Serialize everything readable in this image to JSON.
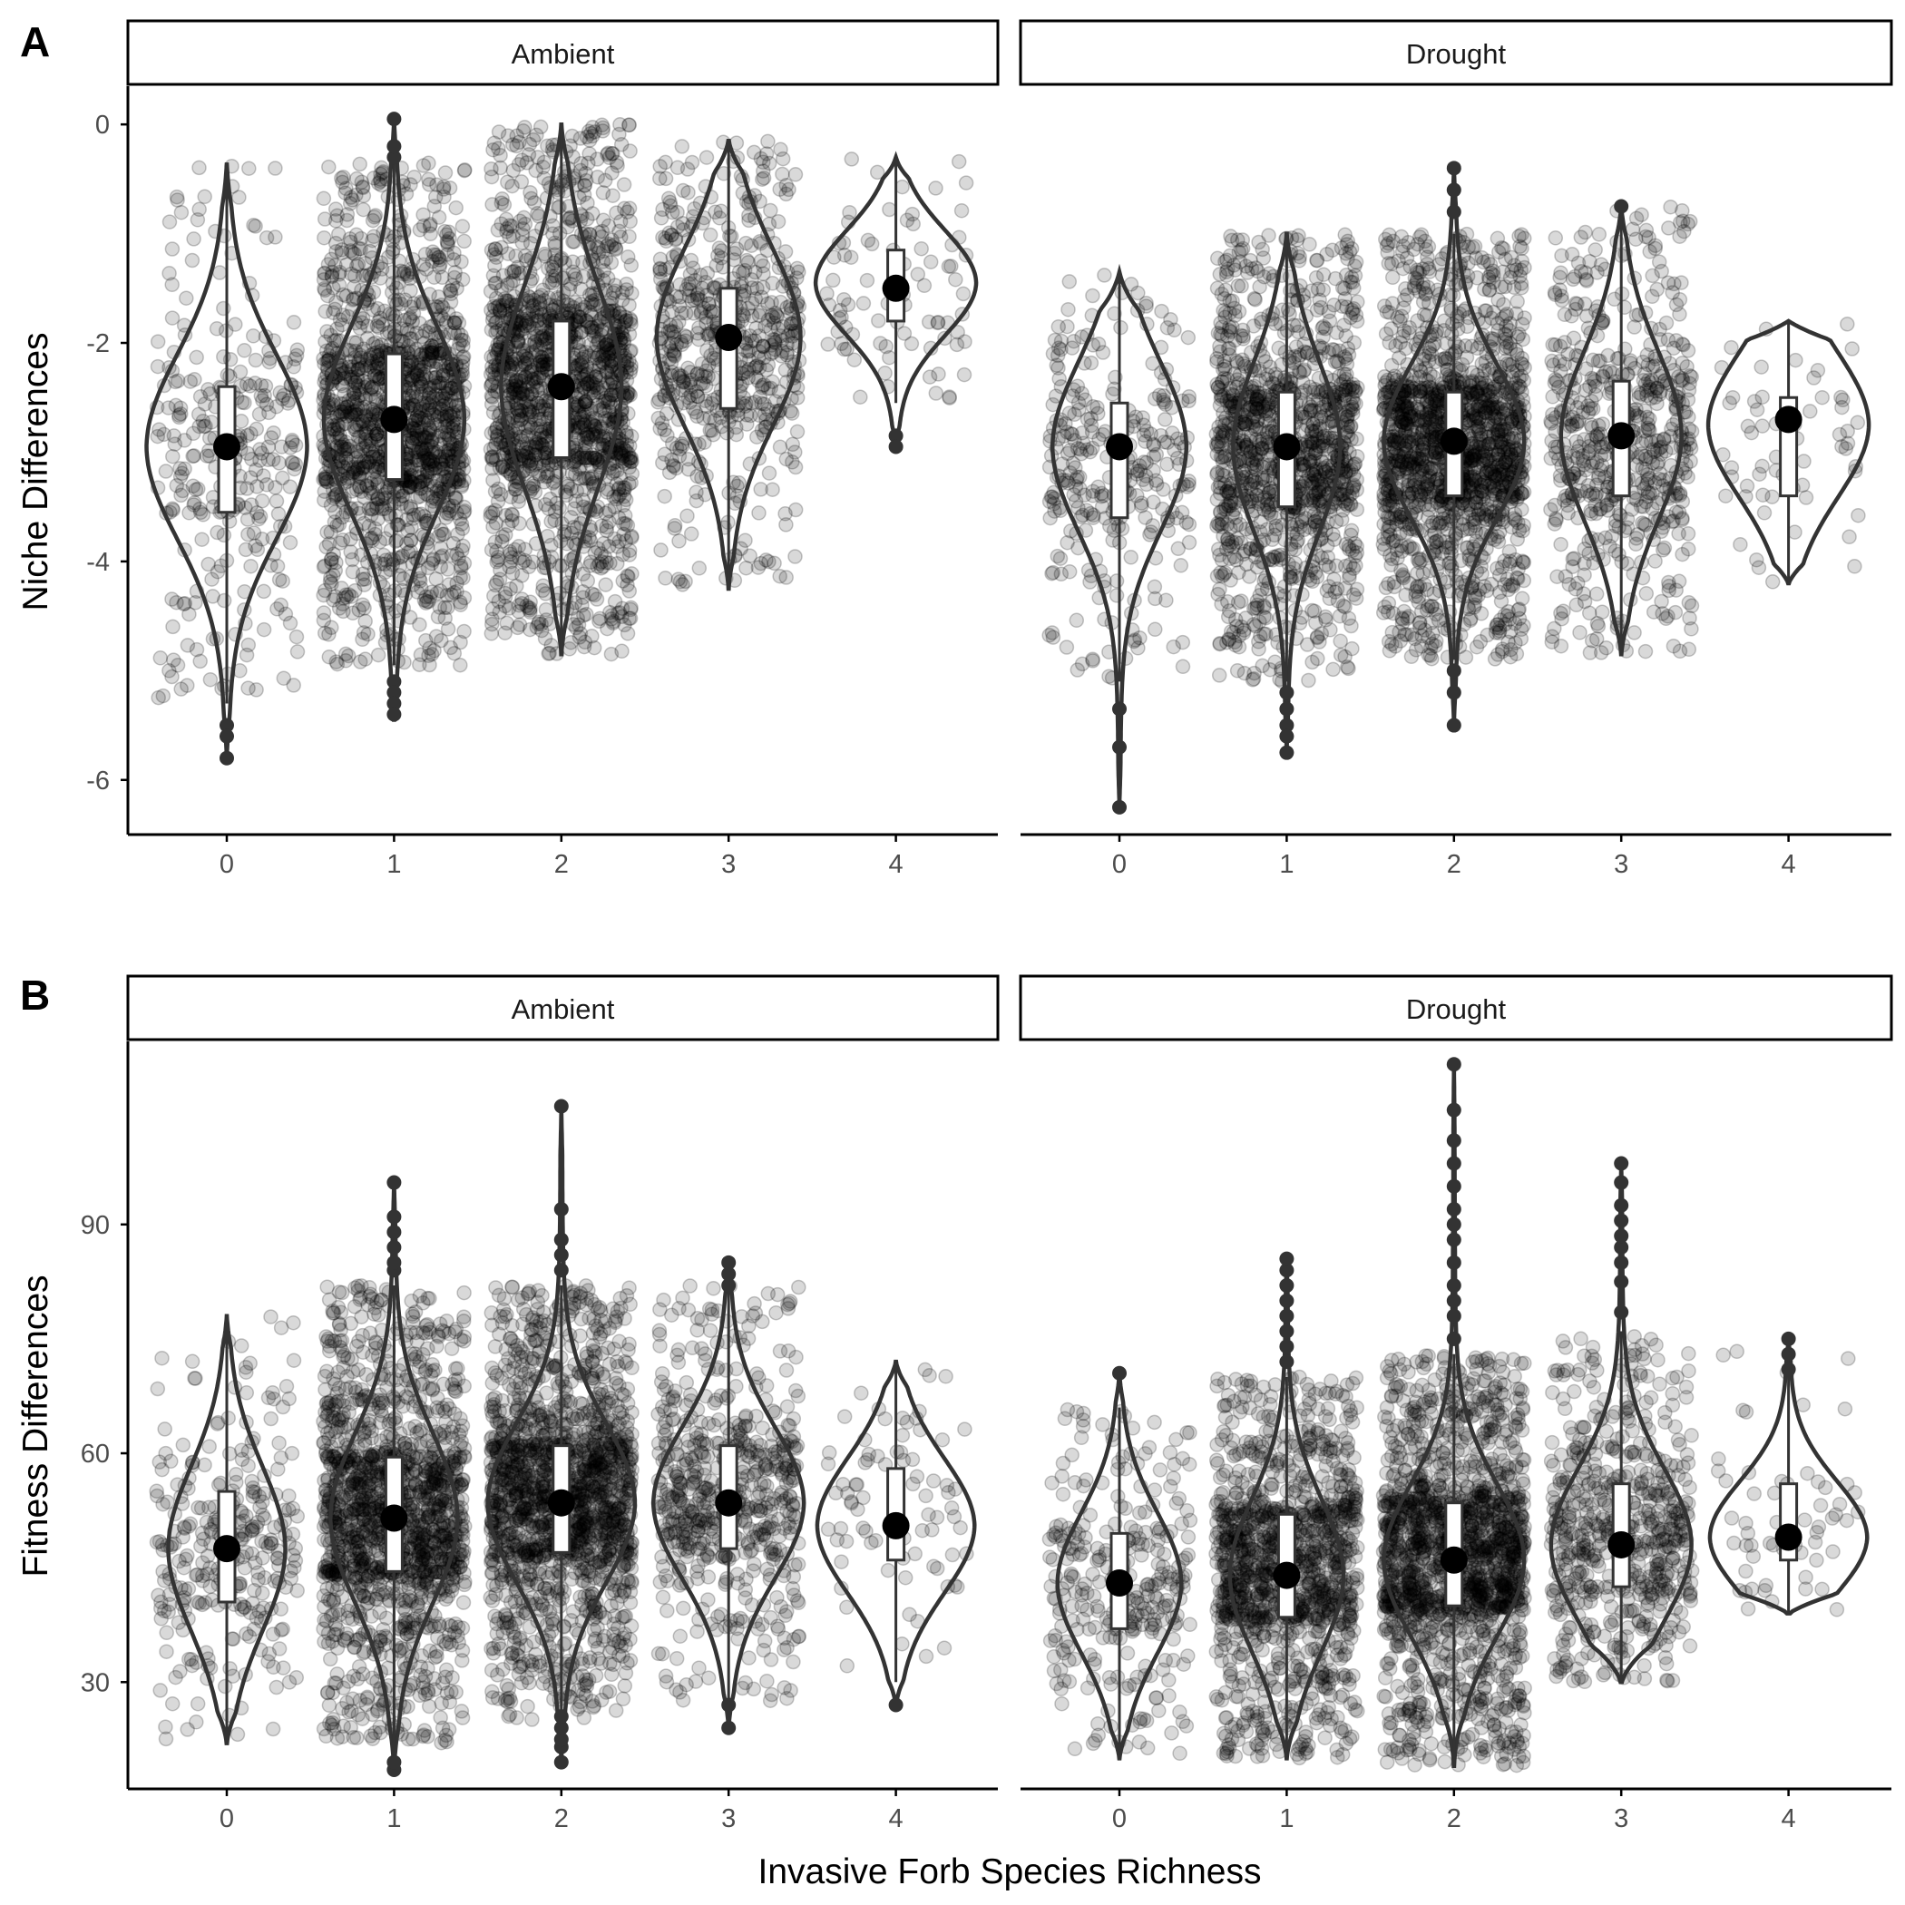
{
  "panel_labels": [
    "A",
    "B"
  ],
  "facet_labels": [
    "Ambient",
    "Drought"
  ],
  "x_axis_title": "Invasive Forb Species Richness",
  "colors": {
    "points": "#000000",
    "violin_stroke": "#333333",
    "violin_fill": "#ffffff",
    "box_stroke": "#333333",
    "box_fill": "#ffffff",
    "mean_point": "#000000",
    "strip_border": "#000000",
    "axis": "#000000"
  },
  "chart_data": [
    {
      "type": "violin",
      "panel": "A",
      "ylabel": "Niche Differences",
      "xlabel": "Invasive Forb Species Richness",
      "categories": [
        "0",
        "1",
        "2",
        "3",
        "4"
      ],
      "ylim": [
        -6.5,
        0.35
      ],
      "yticks": [
        0,
        -2,
        -4,
        -6
      ],
      "ytick_labels": [
        "0",
        "-2",
        "-4",
        "-6"
      ],
      "facets": [
        {
          "name": "Ambient",
          "groups": [
            {
              "x": "0",
              "n": 300,
              "q1": -3.55,
              "median": -2.95,
              "q3": -2.4,
              "whisker_lo": -5.3,
              "whisker_hi": -0.35,
              "mean": -2.95,
              "min": -5.8,
              "max": -0.35,
              "outliers": [
                -5.5,
                -5.6,
                -5.8
              ],
              "violin_max_halfwidth": 0.48
            },
            {
              "x": "1",
              "n": 1500,
              "q1": -3.25,
              "median": -2.7,
              "q3": -2.1,
              "whisker_lo": -4.95,
              "whisker_hi": -0.35,
              "mean": -2.7,
              "min": -5.45,
              "max": 0.05,
              "outliers": [
                -5.1,
                -5.2,
                -5.3,
                -5.4,
                -0.3,
                -0.2,
                0.05
              ],
              "violin_max_halfwidth": 0.42
            },
            {
              "x": "2",
              "n": 2000,
              "q1": -3.05,
              "median": -2.4,
              "q3": -1.8,
              "whisker_lo": -4.85,
              "whisker_hi": 0.0,
              "mean": -2.4,
              "min": -4.85,
              "max": 0.0,
              "outliers": [],
              "violin_max_halfwidth": 0.36
            },
            {
              "x": "3",
              "n": 600,
              "q1": -2.6,
              "median": -1.95,
              "q3": -1.5,
              "whisker_lo": -4.25,
              "whisker_hi": -0.15,
              "mean": -1.95,
              "min": -4.25,
              "max": -0.15,
              "outliers": [],
              "violin_max_halfwidth": 0.43
            },
            {
              "x": "4",
              "n": 80,
              "q1": -1.8,
              "median": -1.45,
              "q3": -1.15,
              "whisker_lo": -2.55,
              "whisker_hi": -0.3,
              "mean": -1.5,
              "min": -2.95,
              "max": -0.3,
              "outliers": [
                -2.85,
                -2.95
              ],
              "violin_max_halfwidth": 0.48
            }
          ]
        },
        {
          "name": "Drought",
          "groups": [
            {
              "x": "0",
              "n": 300,
              "q1": -3.6,
              "median": -2.95,
              "q3": -2.55,
              "whisker_lo": -5.1,
              "whisker_hi": -1.35,
              "mean": -2.95,
              "min": -6.25,
              "max": -1.35,
              "outliers": [
                -5.35,
                -5.7,
                -6.25
              ],
              "violin_max_halfwidth": 0.4
            },
            {
              "x": "1",
              "n": 1200,
              "q1": -3.5,
              "median": -2.95,
              "q3": -2.45,
              "whisker_lo": -5.1,
              "whisker_hi": -1.0,
              "mean": -2.95,
              "min": -5.75,
              "max": -1.0,
              "outliers": [
                -5.2,
                -5.35,
                -5.5,
                -5.6,
                -5.75
              ],
              "violin_max_halfwidth": 0.32
            },
            {
              "x": "2",
              "n": 1800,
              "q1": -3.4,
              "median": -2.9,
              "q3": -2.45,
              "whisker_lo": -4.9,
              "whisker_hi": -1.0,
              "mean": -2.9,
              "min": -5.5,
              "max": -0.4,
              "outliers": [
                -5.0,
                -5.2,
                -5.5,
                -0.4,
                -0.6,
                -0.8
              ],
              "violin_max_halfwidth": 0.42
            },
            {
              "x": "3",
              "n": 600,
              "q1": -3.4,
              "median": -2.85,
              "q3": -2.35,
              "whisker_lo": -4.85,
              "whisker_hi": -0.75,
              "mean": -2.85,
              "min": -4.85,
              "max": -0.75,
              "outliers": [
                -0.75
              ],
              "violin_max_halfwidth": 0.36
            },
            {
              "x": "4",
              "n": 60,
              "q1": -3.4,
              "median": -2.75,
              "q3": -2.5,
              "whisker_lo": -4.2,
              "whisker_hi": -1.8,
              "mean": -2.7,
              "min": -4.2,
              "max": -1.8,
              "outliers": [],
              "violin_max_halfwidth": 0.48
            }
          ]
        }
      ]
    },
    {
      "type": "violin",
      "panel": "B",
      "ylabel": "Fitness Differences",
      "xlabel": "Invasive Forb Species Richness",
      "categories": [
        "0",
        "1",
        "2",
        "3",
        "4"
      ],
      "ylim": [
        16,
        114
      ],
      "yticks": [
        30,
        60,
        90
      ],
      "ytick_labels": [
        "30",
        "60",
        "90"
      ],
      "facets": [
        {
          "name": "Ambient",
          "groups": [
            {
              "x": "0",
              "n": 300,
              "q1": 40.5,
              "median": 47.5,
              "q3": 55,
              "whisker_lo": 22,
              "whisker_hi": 78,
              "mean": 47.5,
              "min": 22,
              "max": 78,
              "outliers": [],
              "violin_max_halfwidth": 0.35
            },
            {
              "x": "1",
              "n": 1500,
              "q1": 44.5,
              "median": 51.5,
              "q3": 59.5,
              "whisker_lo": 22,
              "whisker_hi": 82,
              "mean": 51.5,
              "min": 18.5,
              "max": 95.5,
              "outliers": [
                18.5,
                19.5,
                84,
                85,
                87,
                89,
                91,
                95.5
              ],
              "violin_max_halfwidth": 0.38
            },
            {
              "x": "2",
              "n": 2000,
              "q1": 47,
              "median": 53.5,
              "q3": 61,
              "whisker_lo": 25,
              "whisker_hi": 82,
              "mean": 53.5,
              "min": 19.5,
              "max": 105.5,
              "outliers": [
                19.5,
                21.5,
                22.5,
                24,
                25.5,
                84,
                86,
                88,
                92,
                105.5
              ],
              "violin_max_halfwidth": 0.44
            },
            {
              "x": "3",
              "n": 600,
              "q1": 47.5,
              "median": 53.5,
              "q3": 61,
              "whisker_lo": 27,
              "whisker_hi": 82,
              "mean": 53.5,
              "min": 24,
              "max": 85,
              "outliers": [
                24,
                27,
                82,
                83.5,
                85
              ],
              "violin_max_halfwidth": 0.45
            },
            {
              "x": "4",
              "n": 80,
              "q1": 46,
              "median": 50.5,
              "q3": 58,
              "whisker_lo": 30,
              "whisker_hi": 72,
              "mean": 50.5,
              "min": 27,
              "max": 72,
              "outliers": [
                27
              ],
              "violin_max_halfwidth": 0.47
            }
          ]
        },
        {
          "name": "Drought",
          "groups": [
            {
              "x": "0",
              "n": 300,
              "q1": 37,
              "median": 43,
              "q3": 49.5,
              "whisker_lo": 20,
              "whisker_hi": 66,
              "mean": 43,
              "min": 20,
              "max": 70.5,
              "outliers": [
                70.5
              ],
              "violin_max_halfwidth": 0.37
            },
            {
              "x": "1",
              "n": 1200,
              "q1": 38.5,
              "median": 44,
              "q3": 52,
              "whisker_lo": 20,
              "whisker_hi": 70,
              "mean": 44,
              "min": 20,
              "max": 85.5,
              "outliers": [
                72,
                74,
                76,
                78,
                80,
                82,
                84,
                85.5
              ],
              "violin_max_halfwidth": 0.34
            },
            {
              "x": "2",
              "n": 1800,
              "q1": 40,
              "median": 46,
              "q3": 53.5,
              "whisker_lo": 19,
              "whisker_hi": 73,
              "mean": 46,
              "min": 19,
              "max": 111,
              "outliers": [
                75,
                78,
                80,
                82,
                85,
                88,
                90,
                92,
                95,
                98,
                101,
                105,
                111
              ],
              "violin_max_halfwidth": 0.42
            },
            {
              "x": "3",
              "n": 600,
              "q1": 42.5,
              "median": 48,
              "q3": 56,
              "whisker_lo": 30,
              "whisker_hi": 76,
              "mean": 48,
              "min": 30,
              "max": 98,
              "outliers": [
                78.5,
                82.5,
                85,
                87,
                88.5,
                90.5,
                92.5,
                95.5,
                98
              ],
              "violin_max_halfwidth": 0.42
            },
            {
              "x": "4",
              "n": 60,
              "q1": 46,
              "median": 49,
              "q3": 56,
              "whisker_lo": 39,
              "whisker_hi": 74,
              "mean": 49,
              "min": 39,
              "max": 75,
              "outliers": [
                71,
                73,
                75
              ],
              "violin_max_halfwidth": 0.47
            }
          ]
        }
      ]
    }
  ]
}
